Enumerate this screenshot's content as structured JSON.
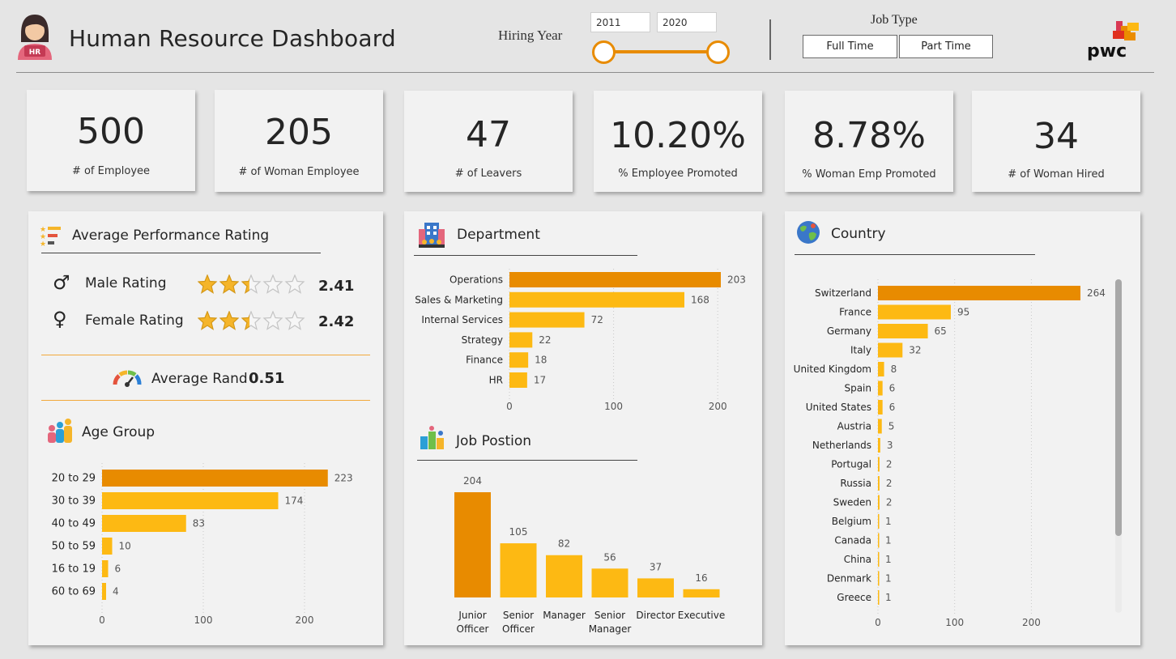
{
  "header": {
    "title": "Human Resource Dashboard",
    "hiring_year_label": "Hiring Year",
    "year_from": "2011",
    "year_to": "2020",
    "job_type_label": "Job Type",
    "job_types": [
      "Full Time",
      "Part Time"
    ],
    "logo_text": "pwc",
    "avatar_text": "HR"
  },
  "kpis": [
    {
      "value": "500",
      "label": "# of Employee"
    },
    {
      "value": "205",
      "label": "# of Woman Employee"
    },
    {
      "value": "47",
      "label": "# of Leavers"
    },
    {
      "value": "10.20%",
      "label": "% Employee Promoted"
    },
    {
      "value": "8.78%",
      "label": "% Woman Emp Promoted"
    },
    {
      "value": "34",
      "label": "# of Woman Hired"
    }
  ],
  "performance": {
    "title": "Average Performance Rating",
    "male_label": "Male Rating",
    "male_value": "2.41",
    "male_stars": 2.41,
    "female_label": "Female Rating",
    "female_value": "2.42",
    "female_stars": 2.42,
    "avg_rand_label": "Average Rand",
    "avg_rand_value": "0.51"
  },
  "colors": {
    "accent_dark": "#e88b00",
    "accent": "#fdb913",
    "star": "#f5b52a",
    "star_empty": "#c4c4c4"
  },
  "chart_data": [
    {
      "id": "age",
      "type": "bar",
      "orientation": "horizontal",
      "title": "Age Group",
      "categories": [
        "20 to 29",
        "30 to 39",
        "40 to 49",
        "50 to 59",
        "16 to 19",
        "60 to 69"
      ],
      "values": [
        223,
        174,
        83,
        10,
        6,
        4
      ],
      "xlim": [
        0,
        240
      ],
      "ticks": [
        0,
        100,
        200
      ],
      "grid": true
    },
    {
      "id": "dept",
      "type": "bar",
      "orientation": "horizontal",
      "title": "Department",
      "categories": [
        "Operations",
        "Sales & Marketing",
        "Internal Services",
        "Strategy",
        "Finance",
        "HR"
      ],
      "values": [
        203,
        168,
        72,
        22,
        18,
        17
      ],
      "xlim": [
        0,
        210
      ],
      "ticks": [
        0,
        100,
        200
      ],
      "grid": true
    },
    {
      "id": "job",
      "type": "bar",
      "orientation": "vertical",
      "title": "Job Postion",
      "categories": [
        "Junior Officer",
        "Senior Officer",
        "Manager",
        "Senior Manager",
        "Director",
        "Executive"
      ],
      "values": [
        204,
        105,
        82,
        56,
        37,
        16
      ],
      "ylim": [
        0,
        204
      ]
    },
    {
      "id": "country",
      "type": "bar",
      "orientation": "horizontal",
      "title": "Country",
      "categories": [
        "Switzerland",
        "France",
        "Germany",
        "Italy",
        "United Kingdom",
        "Spain",
        "United States",
        "Austria",
        "Netherlands",
        "Portugal",
        "Russia",
        "Sweden",
        "Belgium",
        "Canada",
        "China",
        "Denmark",
        "Greece"
      ],
      "values": [
        264,
        95,
        65,
        32,
        8,
        6,
        6,
        5,
        3,
        2,
        2,
        2,
        1,
        1,
        1,
        1,
        1
      ],
      "xlim": [
        0,
        264
      ],
      "ticks": [
        0,
        100,
        200
      ],
      "grid": true
    }
  ]
}
